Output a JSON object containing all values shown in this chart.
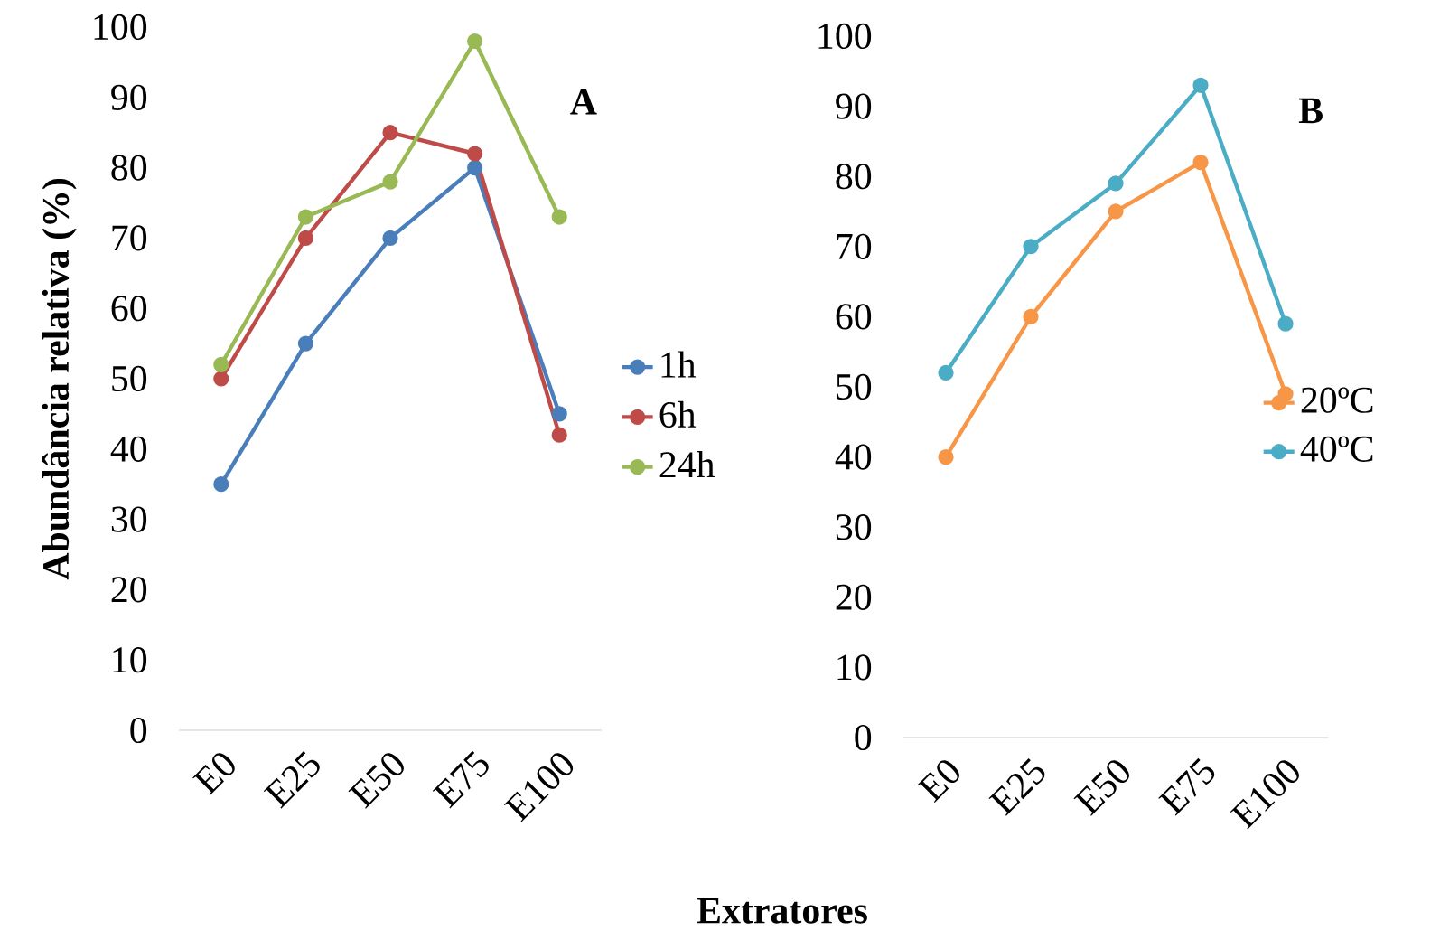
{
  "chart_data": [
    {
      "type": "line",
      "ylabel": "Abundância relativa (%)",
      "xlabel": "Extratores",
      "annotations": [
        "A"
      ],
      "categories": [
        "E0",
        "E25",
        "E50",
        "E75",
        "E100"
      ],
      "ylim": [
        0,
        100
      ],
      "yticks": [
        0,
        10,
        20,
        30,
        40,
        50,
        60,
        70,
        80,
        90,
        100
      ],
      "marker": "circle",
      "legend": "right",
      "series": [
        {
          "name": "1h",
          "color": "#4a7ebb",
          "values": [
            35,
            55,
            70,
            80,
            45
          ]
        },
        {
          "name": "6h",
          "color": "#be4b48",
          "values": [
            50,
            70,
            85,
            82,
            42
          ]
        },
        {
          "name": "24h",
          "color": "#98b954",
          "values": [
            52,
            73,
            78,
            98,
            73
          ]
        }
      ]
    },
    {
      "type": "line",
      "annotations": [
        "B"
      ],
      "categories": [
        "E0",
        "E25",
        "E50",
        "E75",
        "E100"
      ],
      "ylim": [
        0,
        100
      ],
      "yticks": [
        0,
        10,
        20,
        30,
        40,
        50,
        60,
        70,
        80,
        90,
        100
      ],
      "marker": "circle",
      "legend": "right",
      "series": [
        {
          "name": "20ºC",
          "color": "#f79646",
          "values": [
            40,
            60,
            75,
            82,
            49
          ]
        },
        {
          "name": "40ºC",
          "color": "#4bacc6",
          "values": [
            52,
            70,
            79,
            93,
            59
          ]
        }
      ]
    }
  ]
}
